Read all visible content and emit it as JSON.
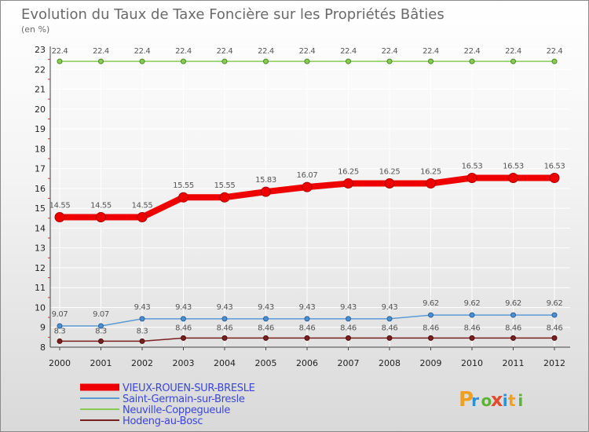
{
  "chart_data": {
    "type": "line",
    "title": "Evolution du Taux de Taxe Foncière sur les Propriétés Bâties",
    "unit_label": "(en %)",
    "x": [
      "2000",
      "2001",
      "2002",
      "2003",
      "2004",
      "2005",
      "2006",
      "2007",
      "2008",
      "2009",
      "2010",
      "2011",
      "2012"
    ],
    "y_ticks": [
      8,
      9,
      10,
      11,
      12,
      13,
      14,
      15,
      16,
      17,
      18,
      19,
      20,
      21,
      22,
      23
    ],
    "ylim": [
      8,
      23
    ],
    "grid": true,
    "legend_position": "bottom-left",
    "series": [
      {
        "name": "VIEUX-ROUEN-SUR-BRESLE",
        "color": "#ee0000",
        "values": [
          14.55,
          14.55,
          14.55,
          15.55,
          15.55,
          15.83,
          16.07,
          16.25,
          16.25,
          16.25,
          16.53,
          16.53,
          16.53
        ],
        "labels": [
          "14.55",
          "14.55",
          "14.55",
          "15.55",
          "15.55",
          "15.83",
          "16.07",
          "16.25",
          "16.25",
          "16.25",
          "16.53",
          "16.53",
          "16.53"
        ]
      },
      {
        "name": "Saint-Germain-sur-Bresle",
        "color": "#5b9bd5",
        "values": [
          9.07,
          9.07,
          9.43,
          9.43,
          9.43,
          9.43,
          9.43,
          9.43,
          9.43,
          9.62,
          9.62,
          9.62,
          9.62
        ],
        "labels": [
          "9.07",
          "9.07",
          "9.43",
          "9.43",
          "9.43",
          "9.43",
          "9.43",
          "9.43",
          "9.43",
          "9.62",
          "9.62",
          "9.62",
          "9.62"
        ]
      },
      {
        "name": "Neuville-Coppegueule",
        "color": "#88cc55",
        "values": [
          22.4,
          22.4,
          22.4,
          22.4,
          22.4,
          22.4,
          22.4,
          22.4,
          22.4,
          22.4,
          22.4,
          22.4,
          22.4
        ],
        "labels": [
          "22.4",
          "22.4",
          "22.4",
          "22.4",
          "22.4",
          "22.4",
          "22.4",
          "22.4",
          "22.4",
          "22.4",
          "22.4",
          "22.4",
          "22.4"
        ]
      },
      {
        "name": "Hodeng-au-Bosc",
        "color": "#7a2020",
        "values": [
          8.3,
          8.3,
          8.3,
          8.46,
          8.46,
          8.46,
          8.46,
          8.46,
          8.46,
          8.46,
          8.46,
          8.46,
          8.46
        ],
        "labels": [
          "8.3",
          "8.3",
          "8.3",
          "8.46",
          "8.46",
          "8.46",
          "8.46",
          "8.46",
          "8.46",
          "8.46",
          "8.46",
          "8.46",
          "8.46"
        ]
      }
    ]
  },
  "logo": {
    "text": "Proxiti",
    "colors": [
      "#f0a020",
      "#2d8fd6",
      "#5cb531",
      "#e64a2e",
      "#2d8fd6",
      "#f0a020",
      "#5cb531"
    ]
  }
}
